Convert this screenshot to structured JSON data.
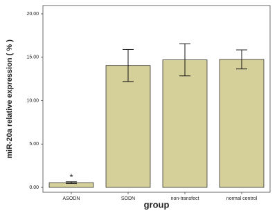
{
  "chart_data": {
    "type": "bar",
    "x_label": "group",
    "y_label": "miR-20a relative expression ( % )",
    "categories": [
      "ASODN",
      "SODN",
      "non-transfect",
      "normal control"
    ],
    "values": [
      0.55,
      14.05,
      14.7,
      14.75
    ],
    "errors": [
      0.1,
      1.85,
      1.85,
      1.1
    ],
    "color": "#d5cf9a",
    "annotations": [
      {
        "category": 0,
        "text": "*"
      }
    ],
    "ylim": [
      0,
      20
    ],
    "yticks": [
      {
        "value": 0,
        "label": "0.00"
      },
      {
        "value": 5,
        "label": "5.00"
      },
      {
        "value": 10,
        "label": "10.00"
      },
      {
        "value": 15,
        "label": "15.00"
      },
      {
        "value": 20,
        "label": "20.00"
      }
    ]
  }
}
